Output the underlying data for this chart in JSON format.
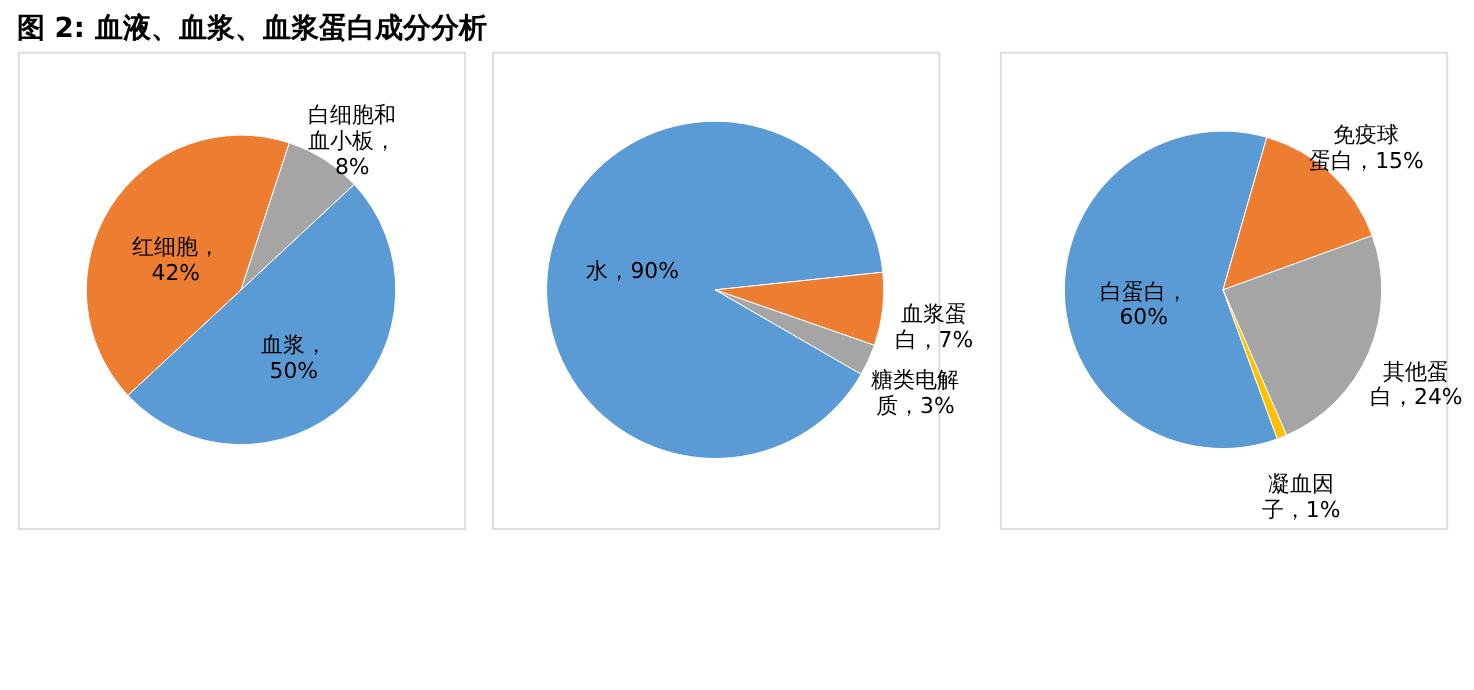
{
  "chart_data": [
    {
      "type": "pie",
      "title": "图 2: 血液、血浆、血浆蛋白成分分析",
      "categories": [
        "血浆",
        "红细胞",
        "白细胞和血小板"
      ],
      "values": [
        50,
        42,
        8
      ],
      "colors": [
        "#5b9bd5",
        "#ed7d31",
        "#a5a5a5"
      ],
      "value_labels": [
        "，50%",
        "，42%",
        "，8%"
      ]
    },
    {
      "type": "pie",
      "categories": [
        "水",
        "血浆蛋白",
        "糖类电解质"
      ],
      "values": [
        90,
        7,
        3
      ],
      "colors": [
        "#5b9bd5",
        "#ed7d31",
        "#a5a5a5"
      ],
      "value_labels": [
        "，90%",
        "，7%",
        "，3%"
      ]
    },
    {
      "type": "pie",
      "categories": [
        "白蛋白",
        "免疫球蛋白",
        "其他蛋白",
        "凝血因子"
      ],
      "values": [
        60,
        15,
        24,
        1
      ],
      "colors": [
        "#5b9bd5",
        "#ed7d31",
        "#a5a5a5",
        "#ffc000"
      ],
      "value_labels": [
        "，60%",
        "，15%",
        "，24%",
        "，1%"
      ]
    }
  ]
}
